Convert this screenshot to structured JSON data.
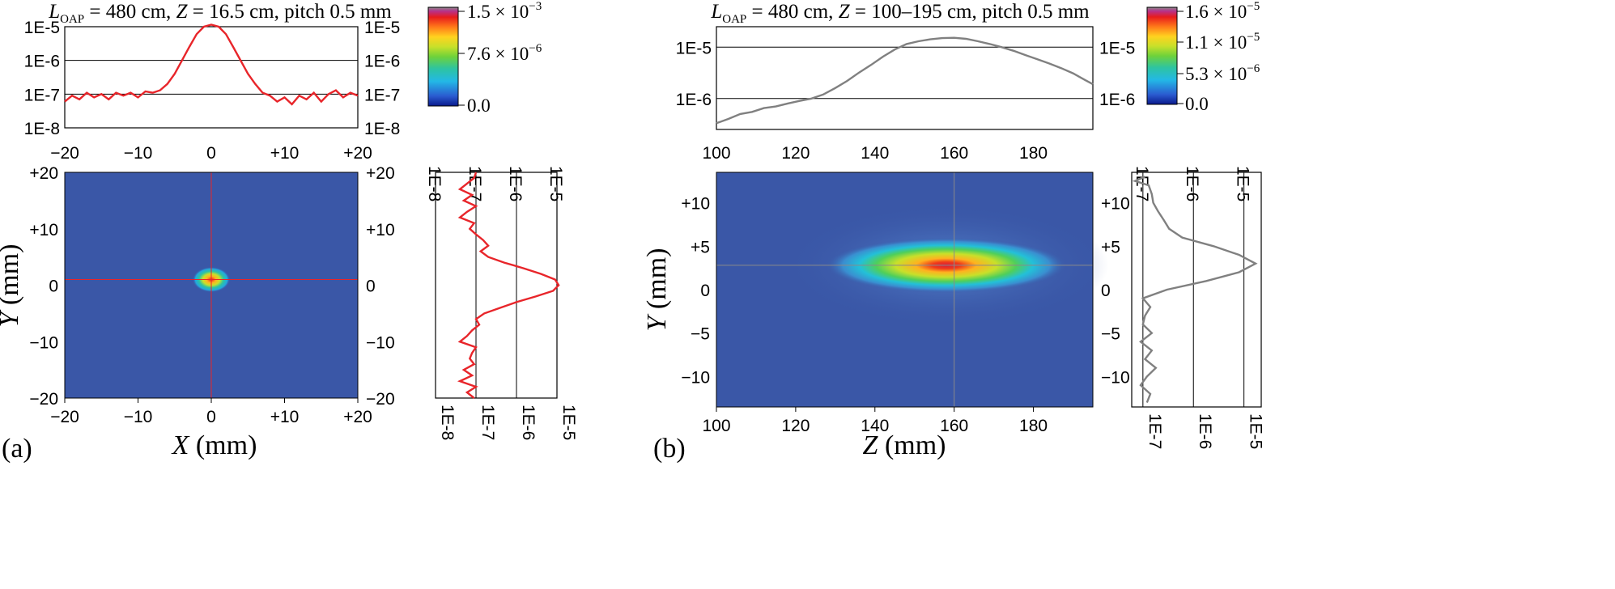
{
  "colors": {
    "profile_a": "#e8252a",
    "profile_b": "#808080",
    "map_background": "#3a57a7",
    "crosshair_a": "#e8252a",
    "crosshair_b": "#8a8a8a",
    "gridline": "#000000",
    "colormap": [
      "#0a1a8c",
      "#2a5bd0",
      "#23b8e6",
      "#2ec4a0",
      "#6fd23a",
      "#c8e02a",
      "#ffd21f",
      "#ff7a1a",
      "#e81c1c",
      "#b8308a",
      "#8a8a8a"
    ]
  },
  "chart_data": [
    {
      "panel_label": "(a)",
      "type": "heatmap",
      "title": "L_OAP = 480 cm, Z = 16.5 cm, pitch 0.5 mm",
      "title_parts": {
        "l": "L",
        "sub": "OAP",
        "rest1": " = 480 cm, ",
        "z": "Z",
        "rest2": " = 16.5 cm, pitch 0.5 mm"
      },
      "xlabel": "X (mm)",
      "xlabel_parts": {
        "var": "X",
        "unit": " (mm)"
      },
      "ylabel": "Y (mm)",
      "ylabel_parts": {
        "var": "Y",
        "unit": " (mm)"
      },
      "xlim": [
        -20,
        20
      ],
      "ylim": [
        -20,
        20
      ],
      "xticks": [
        "−20",
        "−10",
        "0",
        "+10",
        "+20"
      ],
      "xtick_values": [
        -20,
        -10,
        0,
        10,
        20
      ],
      "yticks": [
        "+20",
        "+10",
        "0",
        "−10",
        "−20"
      ],
      "ytick_values": [
        20,
        10,
        0,
        -10,
        -20
      ],
      "spot": {
        "center_x": 0,
        "center_y": 1,
        "sigma_x": 1.6,
        "sigma_y": 1.4
      },
      "crosshair": {
        "x": 0,
        "y": 1
      },
      "colorbar": {
        "labels": [
          "1.5 × 10",
          "7.6 × 10",
          "0.0"
        ],
        "exponents": [
          "−3",
          "−6",
          ""
        ]
      },
      "top_profile": {
        "type": "line",
        "scale": "log",
        "ylim": [
          1e-08,
          1e-05
        ],
        "ytick_labels": [
          "1E-5",
          "1E-6",
          "1E-7",
          "1E-8"
        ],
        "ytick_values": [
          1e-05,
          1e-06,
          1e-07,
          1e-08
        ],
        "x": [
          -20,
          -19,
          -18,
          -17,
          -16,
          -15,
          -14,
          -13,
          -12,
          -11,
          -10,
          -9,
          -8,
          -7,
          -6,
          -5,
          -4,
          -3,
          -2,
          -1,
          0,
          1,
          2,
          3,
          4,
          5,
          6,
          7,
          8,
          9,
          10,
          11,
          12,
          13,
          14,
          15,
          16,
          17,
          18,
          19,
          20
        ],
        "y": [
          6e-08,
          9e-08,
          7e-08,
          1.1e-07,
          8e-08,
          1e-07,
          7e-08,
          1.1e-07,
          9e-08,
          1.1e-07,
          8e-08,
          1.2e-07,
          1.1e-07,
          1.3e-07,
          2e-07,
          4e-07,
          1e-06,
          2.5e-06,
          6e-06,
          1e-05,
          1.15e-05,
          1e-05,
          6e-06,
          2.5e-06,
          1e-06,
          4e-07,
          2e-07,
          1.1e-07,
          9e-08,
          6e-08,
          8e-08,
          5e-08,
          9e-08,
          7e-08,
          1.1e-07,
          6e-08,
          1e-07,
          1.3e-07,
          8e-08,
          1.1e-07,
          9e-08
        ]
      },
      "side_profile": {
        "type": "line",
        "scale": "log",
        "xlim": [
          1e-08,
          1e-05
        ],
        "tick_labels": [
          "1E-8",
          "1E-7",
          "1E-6",
          "1E-5"
        ],
        "tick_values": [
          1e-08,
          1e-07,
          1e-06,
          1e-05
        ],
        "y": [
          20,
          19,
          18,
          17,
          16,
          15,
          14,
          13,
          12,
          11,
          10,
          9,
          8,
          7,
          6,
          5,
          4,
          3,
          2,
          1,
          0,
          -1,
          -2,
          -3,
          -4,
          -5,
          -6,
          -7,
          -8,
          -9,
          -10,
          -11,
          -12,
          -13,
          -14,
          -15,
          -16,
          -17,
          -18,
          -19,
          -20
        ],
        "x": [
          1e-07,
          9e-08,
          6e-08,
          4e-08,
          8e-08,
          5e-08,
          1e-07,
          6e-08,
          4e-08,
          9e-08,
          7e-08,
          1e-07,
          1.5e-07,
          2e-07,
          1.3e-07,
          2e-07,
          5e-07,
          1.5e-06,
          4e-06,
          9e-06,
          1.1e-05,
          8e-06,
          3e-06,
          1e-06,
          4e-07,
          1.6e-07,
          1e-07,
          1.2e-07,
          8e-08,
          6e-08,
          4e-08,
          1e-07,
          8e-08,
          7e-08,
          9e-08,
          5e-08,
          8e-08,
          4e-08,
          1e-07,
          6e-08,
          9e-08
        ]
      }
    },
    {
      "panel_label": "(b)",
      "type": "heatmap",
      "title": "L_OAP = 480 cm, Z = 100–195 cm, pitch 0.5 mm",
      "title_parts": {
        "l": "L",
        "sub": "OAP",
        "rest1": " = 480 cm, ",
        "z": "Z",
        "rest2": " = 100–195 cm, pitch 0.5 mm"
      },
      "xlabel": "Z (mm)",
      "xlabel_parts": {
        "var": "Z",
        "unit": " (mm)"
      },
      "ylabel": "Y (mm)",
      "ylabel_parts": {
        "var": "Y",
        "unit": " (mm)"
      },
      "xlim": [
        100,
        195
      ],
      "ylim": [
        -13.5,
        13.5
      ],
      "xticks": [
        "100",
        "120",
        "140",
        "160",
        "180"
      ],
      "xtick_values": [
        100,
        120,
        140,
        160,
        180
      ],
      "yticks": [
        "+10",
        "+5",
        "0",
        "−5",
        "−10"
      ],
      "ytick_values": [
        10,
        5,
        0,
        -5,
        -10
      ],
      "spot": {
        "center_x": 158,
        "center_y": 2.8,
        "sigma_x": 19,
        "sigma_y": 2.0
      },
      "crosshair": {
        "x": 160,
        "y": 2.8
      },
      "colorbar": {
        "labels": [
          "1.6 × 10",
          "1.1 × 10",
          "5.3 × 10",
          "0.0"
        ],
        "exponents": [
          "−5",
          "−5",
          "−6",
          ""
        ]
      },
      "top_profile": {
        "type": "line",
        "scale": "log",
        "ylim": [
          2.5e-07,
          2.5e-05
        ],
        "ytick_labels": [
          "1E-5",
          "1E-6"
        ],
        "ytick_values": [
          1e-05,
          1e-06
        ],
        "x": [
          100,
          103,
          106,
          109,
          112,
          115,
          118,
          121,
          124,
          127,
          130,
          133,
          136,
          139,
          142,
          145,
          148,
          151,
          154,
          157,
          160,
          163,
          166,
          169,
          172,
          175,
          178,
          181,
          184,
          187,
          190,
          193,
          195
        ],
        "y": [
          3.3e-07,
          4e-07,
          5e-07,
          5.5e-07,
          6.5e-07,
          7e-07,
          8e-07,
          9e-07,
          1e-06,
          1.2e-06,
          1.6e-06,
          2.2e-06,
          3.2e-06,
          4.5e-06,
          6.5e-06,
          9e-06,
          1.15e-05,
          1.3e-05,
          1.42e-05,
          1.5e-05,
          1.52e-05,
          1.45e-05,
          1.3e-05,
          1.15e-05,
          1e-05,
          8.5e-06,
          7e-06,
          5.8e-06,
          4.8e-06,
          3.9e-06,
          3.1e-06,
          2.3e-06,
          1.9e-06
        ]
      },
      "side_profile": {
        "type": "line",
        "scale": "log",
        "xlim": [
          6e-08,
          2.2e-05
        ],
        "tick_labels": [
          "1E-7",
          "1E-6",
          "1E-5"
        ],
        "tick_values": [
          1e-07,
          1e-06,
          1e-05
        ],
        "y": [
          13,
          12.5,
          12,
          11,
          10,
          9,
          8,
          7,
          6,
          5,
          4,
          3,
          2,
          1,
          0,
          -1,
          -2,
          -3,
          -4,
          -5,
          -6,
          -7,
          -8,
          -9,
          -10,
          -11,
          -12,
          -13
        ],
        "x": [
          1.1e-07,
          7e-08,
          1.3e-07,
          1.5e-07,
          1.6e-07,
          2e-07,
          2.6e-07,
          3.3e-07,
          6e-07,
          2.5e-06,
          8e-06,
          1.7e-05,
          8e-06,
          1.8e-06,
          3e-07,
          1e-07,
          1.4e-07,
          1.1e-07,
          1e-07,
          1.5e-07,
          9e-08,
          1.5e-07,
          1.1e-07,
          1.8e-07,
          1.2e-07,
          9e-08,
          1.4e-07,
          1.2e-07
        ]
      }
    }
  ]
}
